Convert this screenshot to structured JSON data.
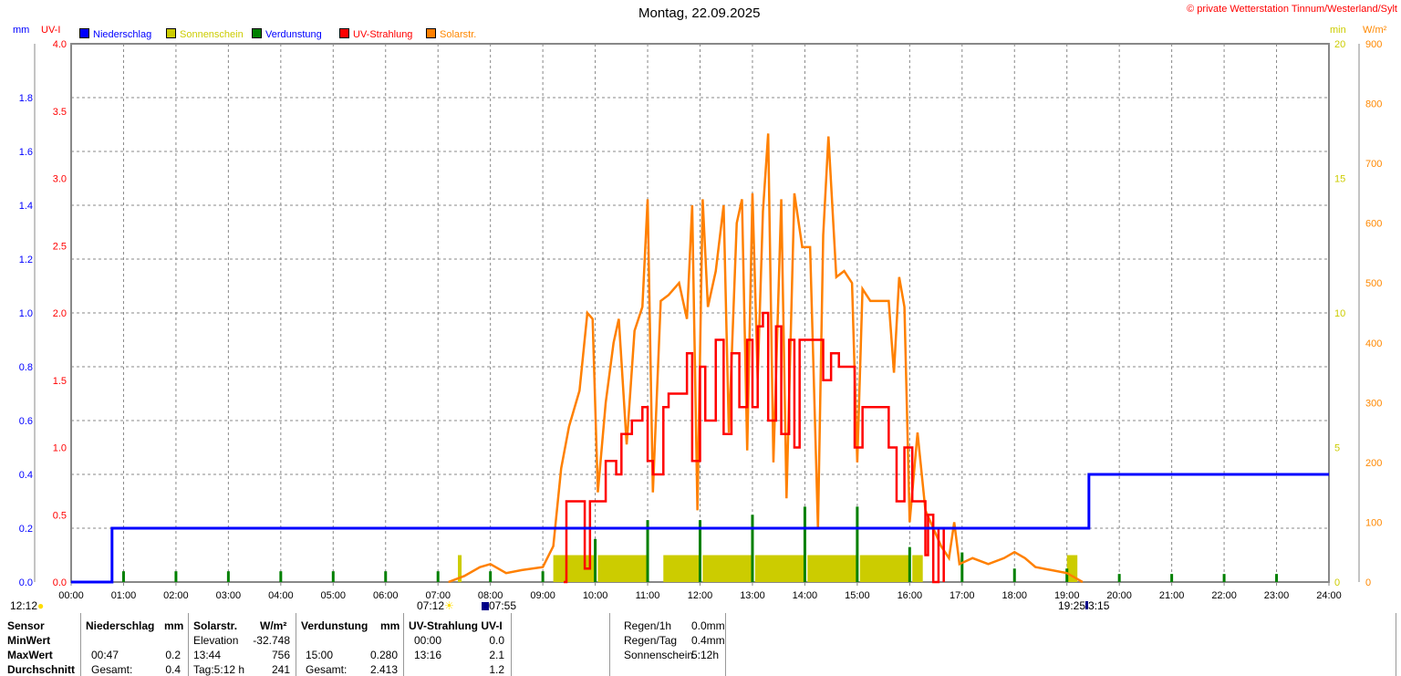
{
  "title": "Montag, 22.09.2025",
  "copyright": "© private Wetterstation Tinnum/Westerland/Sylt",
  "sun_marks": {
    "left": "12:12",
    "sunrise": "07:12",
    "moonrise": "07:55",
    "sunset_moon": "19:25",
    "sunset2": "3:15"
  },
  "chart_data": {
    "type": "line",
    "title": "Montag, 22.09.2025",
    "colors": {
      "rain": "#0000ff",
      "sun": "#cccc00",
      "evap": "#008000",
      "uv": "#ff0000",
      "solar": "#ff8000"
    },
    "legend": [
      "Niederschlag",
      "Sonnenschein",
      "Verdunstung",
      "UV-Strahlung",
      "Solarstr."
    ],
    "legend_placement": "top-left",
    "axes": {
      "mm": {
        "label": "mm",
        "range": [
          0,
          2.0
        ],
        "ticks": [
          "0.0",
          "0.2",
          "0.4",
          "0.6",
          "0.8",
          "1.0",
          "1.2",
          "1.4",
          "1.6",
          "1.8"
        ]
      },
      "uv": {
        "label": "UV-I",
        "range": [
          0,
          4.0
        ],
        "ticks": [
          "0.0",
          "0.5",
          "1.0",
          "1.5",
          "2.0",
          "2.5",
          "3.0",
          "3.5",
          "4.0"
        ]
      },
      "min": {
        "label": "min",
        "range": [
          0,
          20
        ],
        "ticks": [
          "0",
          "5",
          "10",
          "15",
          "20"
        ]
      },
      "wm2": {
        "label": "W/m²",
        "range": [
          0,
          900
        ],
        "ticks": [
          "0",
          "100",
          "200",
          "300",
          "400",
          "500",
          "600",
          "700",
          "800",
          "900"
        ]
      },
      "x": {
        "range": [
          0,
          24
        ],
        "ticks": [
          "00:00",
          "01:00",
          "02:00",
          "03:00",
          "04:00",
          "05:00",
          "06:00",
          "07:00",
          "08:00",
          "09:00",
          "10:00",
          "11:00",
          "12:00",
          "13:00",
          "14:00",
          "15:00",
          "16:00",
          "17:00",
          "18:00",
          "19:00",
          "20:00",
          "21:00",
          "22:00",
          "23:00",
          "24:00"
        ]
      }
    },
    "grid": true,
    "rain_mm": [
      [
        0,
        0
      ],
      [
        0.78,
        0
      ],
      [
        0.78,
        0.2
      ],
      [
        19.42,
        0.2
      ],
      [
        19.42,
        0.4
      ],
      [
        24,
        0.4
      ]
    ],
    "sunshine_min": [
      [
        7.38,
        7.45,
        1
      ],
      [
        9.2,
        10.0,
        1
      ],
      [
        10.05,
        11.0,
        1
      ],
      [
        11.3,
        12.0,
        1
      ],
      [
        12.05,
        13.0,
        1
      ],
      [
        13.05,
        14.0,
        1
      ],
      [
        14.05,
        15.0,
        1
      ],
      [
        15.05,
        16.0,
        1
      ],
      [
        16.05,
        16.25,
        1
      ],
      [
        19.0,
        19.2,
        1
      ]
    ],
    "evaporation_mm": [
      [
        1,
        0.04
      ],
      [
        2,
        0.04
      ],
      [
        3,
        0.04
      ],
      [
        4,
        0.04
      ],
      [
        5,
        0.04
      ],
      [
        6,
        0.04
      ],
      [
        7,
        0.04
      ],
      [
        8,
        0.04
      ],
      [
        9,
        0.04
      ],
      [
        10,
        0.16
      ],
      [
        11,
        0.23
      ],
      [
        12,
        0.23
      ],
      [
        13,
        0.25
      ],
      [
        14,
        0.28
      ],
      [
        15,
        0.28
      ],
      [
        16,
        0.13
      ],
      [
        17,
        0.11
      ],
      [
        18,
        0.05
      ],
      [
        19,
        0.05
      ],
      [
        20,
        0.03
      ],
      [
        21,
        0.03
      ],
      [
        22,
        0.03
      ],
      [
        23,
        0.03
      ]
    ],
    "uv_index": [
      [
        9.4,
        0
      ],
      [
        9.45,
        0.6
      ],
      [
        9.75,
        0.6
      ],
      [
        9.8,
        0.1
      ],
      [
        9.9,
        0.6
      ],
      [
        10.1,
        0.6
      ],
      [
        10.2,
        0.9
      ],
      [
        10.4,
        0.8
      ],
      [
        10.5,
        1.1
      ],
      [
        10.7,
        1.2
      ],
      [
        10.9,
        1.3
      ],
      [
        11.0,
        0.9
      ],
      [
        11.1,
        0.8
      ],
      [
        11.3,
        1.3
      ],
      [
        11.4,
        1.4
      ],
      [
        11.6,
        1.4
      ],
      [
        11.75,
        1.7
      ],
      [
        11.85,
        0.9
      ],
      [
        12.0,
        1.6
      ],
      [
        12.1,
        1.2
      ],
      [
        12.3,
        1.8
      ],
      [
        12.45,
        1.1
      ],
      [
        12.6,
        1.7
      ],
      [
        12.75,
        1.3
      ],
      [
        12.9,
        1.8
      ],
      [
        13.0,
        1.3
      ],
      [
        13.1,
        1.9
      ],
      [
        13.2,
        2.0
      ],
      [
        13.3,
        1.2
      ],
      [
        13.45,
        1.9
      ],
      [
        13.55,
        1.1
      ],
      [
        13.7,
        1.8
      ],
      [
        13.8,
        1.0
      ],
      [
        13.9,
        1.8
      ],
      [
        14.2,
        1.8
      ],
      [
        14.35,
        1.5
      ],
      [
        14.5,
        1.7
      ],
      [
        14.65,
        1.6
      ],
      [
        14.8,
        1.6
      ],
      [
        14.95,
        1.0
      ],
      [
        15.1,
        1.3
      ],
      [
        15.3,
        1.3
      ],
      [
        15.5,
        1.3
      ],
      [
        15.6,
        1.0
      ],
      [
        15.75,
        0.6
      ],
      [
        15.9,
        1.0
      ],
      [
        16.05,
        0.6
      ],
      [
        16.2,
        0.6
      ],
      [
        16.3,
        0.2
      ],
      [
        16.35,
        0.5
      ],
      [
        16.45,
        0
      ],
      [
        16.55,
        0.4
      ],
      [
        16.65,
        0
      ]
    ],
    "solar_wm2": [
      [
        7.2,
        0
      ],
      [
        7.5,
        10
      ],
      [
        7.8,
        25
      ],
      [
        8.0,
        30
      ],
      [
        8.3,
        15
      ],
      [
        8.6,
        20
      ],
      [
        9.0,
        25
      ],
      [
        9.2,
        60
      ],
      [
        9.35,
        190
      ],
      [
        9.5,
        260
      ],
      [
        9.7,
        320
      ],
      [
        9.85,
        450
      ],
      [
        9.95,
        440
      ],
      [
        10.05,
        150
      ],
      [
        10.2,
        300
      ],
      [
        10.35,
        400
      ],
      [
        10.45,
        440
      ],
      [
        10.6,
        230
      ],
      [
        10.75,
        420
      ],
      [
        10.9,
        460
      ],
      [
        11.0,
        640
      ],
      [
        11.1,
        150
      ],
      [
        11.25,
        470
      ],
      [
        11.4,
        480
      ],
      [
        11.6,
        500
      ],
      [
        11.75,
        440
      ],
      [
        11.85,
        630
      ],
      [
        11.95,
        120
      ],
      [
        12.05,
        640
      ],
      [
        12.15,
        460
      ],
      [
        12.3,
        520
      ],
      [
        12.45,
        630
      ],
      [
        12.55,
        250
      ],
      [
        12.7,
        600
      ],
      [
        12.8,
        640
      ],
      [
        12.9,
        220
      ],
      [
        13.0,
        650
      ],
      [
        13.1,
        340
      ],
      [
        13.2,
        620
      ],
      [
        13.3,
        750
      ],
      [
        13.4,
        200
      ],
      [
        13.55,
        640
      ],
      [
        13.65,
        140
      ],
      [
        13.8,
        650
      ],
      [
        13.95,
        560
      ],
      [
        14.1,
        560
      ],
      [
        14.25,
        90
      ],
      [
        14.35,
        580
      ],
      [
        14.45,
        745
      ],
      [
        14.6,
        510
      ],
      [
        14.75,
        520
      ],
      [
        14.9,
        500
      ],
      [
        15.0,
        200
      ],
      [
        15.1,
        490
      ],
      [
        15.25,
        470
      ],
      [
        15.45,
        470
      ],
      [
        15.6,
        470
      ],
      [
        15.7,
        350
      ],
      [
        15.8,
        510
      ],
      [
        15.9,
        460
      ],
      [
        16.0,
        100
      ],
      [
        16.15,
        250
      ],
      [
        16.3,
        120
      ],
      [
        16.45,
        90
      ],
      [
        16.6,
        60
      ],
      [
        16.75,
        40
      ],
      [
        16.85,
        100
      ],
      [
        16.95,
        30
      ],
      [
        17.2,
        40
      ],
      [
        17.5,
        30
      ],
      [
        17.8,
        40
      ],
      [
        18.0,
        50
      ],
      [
        18.2,
        40
      ],
      [
        18.4,
        25
      ],
      [
        18.7,
        20
      ],
      [
        19.0,
        15
      ],
      [
        19.3,
        0
      ]
    ]
  },
  "table": {
    "headers": [
      "Sensor",
      "Niederschlag",
      "mm",
      "Solarstr.",
      "W/m²",
      "Verdunstung",
      "mm",
      "UV-Strahlung UV-I"
    ],
    "rows": [
      {
        "label": "MinWert",
        "rain_t": "",
        "rain_v": "",
        "sol_t": "Elevation",
        "sol_v": "-32.748",
        "ev_t": "",
        "ev_v": "",
        "uv_t": "00:00",
        "uv_v": "0.0"
      },
      {
        "label": "MaxWert",
        "rain_t": "00:47",
        "rain_v": "0.2",
        "sol_t": "13:44",
        "sol_v": "756",
        "ev_t": "15:00",
        "ev_v": "0.280",
        "uv_t": "13:16",
        "uv_v": "2.1"
      },
      {
        "label": "Durchschnitt",
        "rain_t": "Gesamt:",
        "rain_v": "0.4",
        "sol_t": "Tag:5:12 h",
        "sol_v": "241",
        "ev_t": "Gesamt:",
        "ev_v": "2.413",
        "uv_t": "",
        "uv_v": "1.2"
      }
    ],
    "summary": [
      {
        "label": "Regen/1h",
        "value": "0.0mm"
      },
      {
        "label": "Regen/Tag",
        "value": "0.4mm"
      },
      {
        "label": "Sonnenschein",
        "value": "5:12h"
      }
    ]
  }
}
